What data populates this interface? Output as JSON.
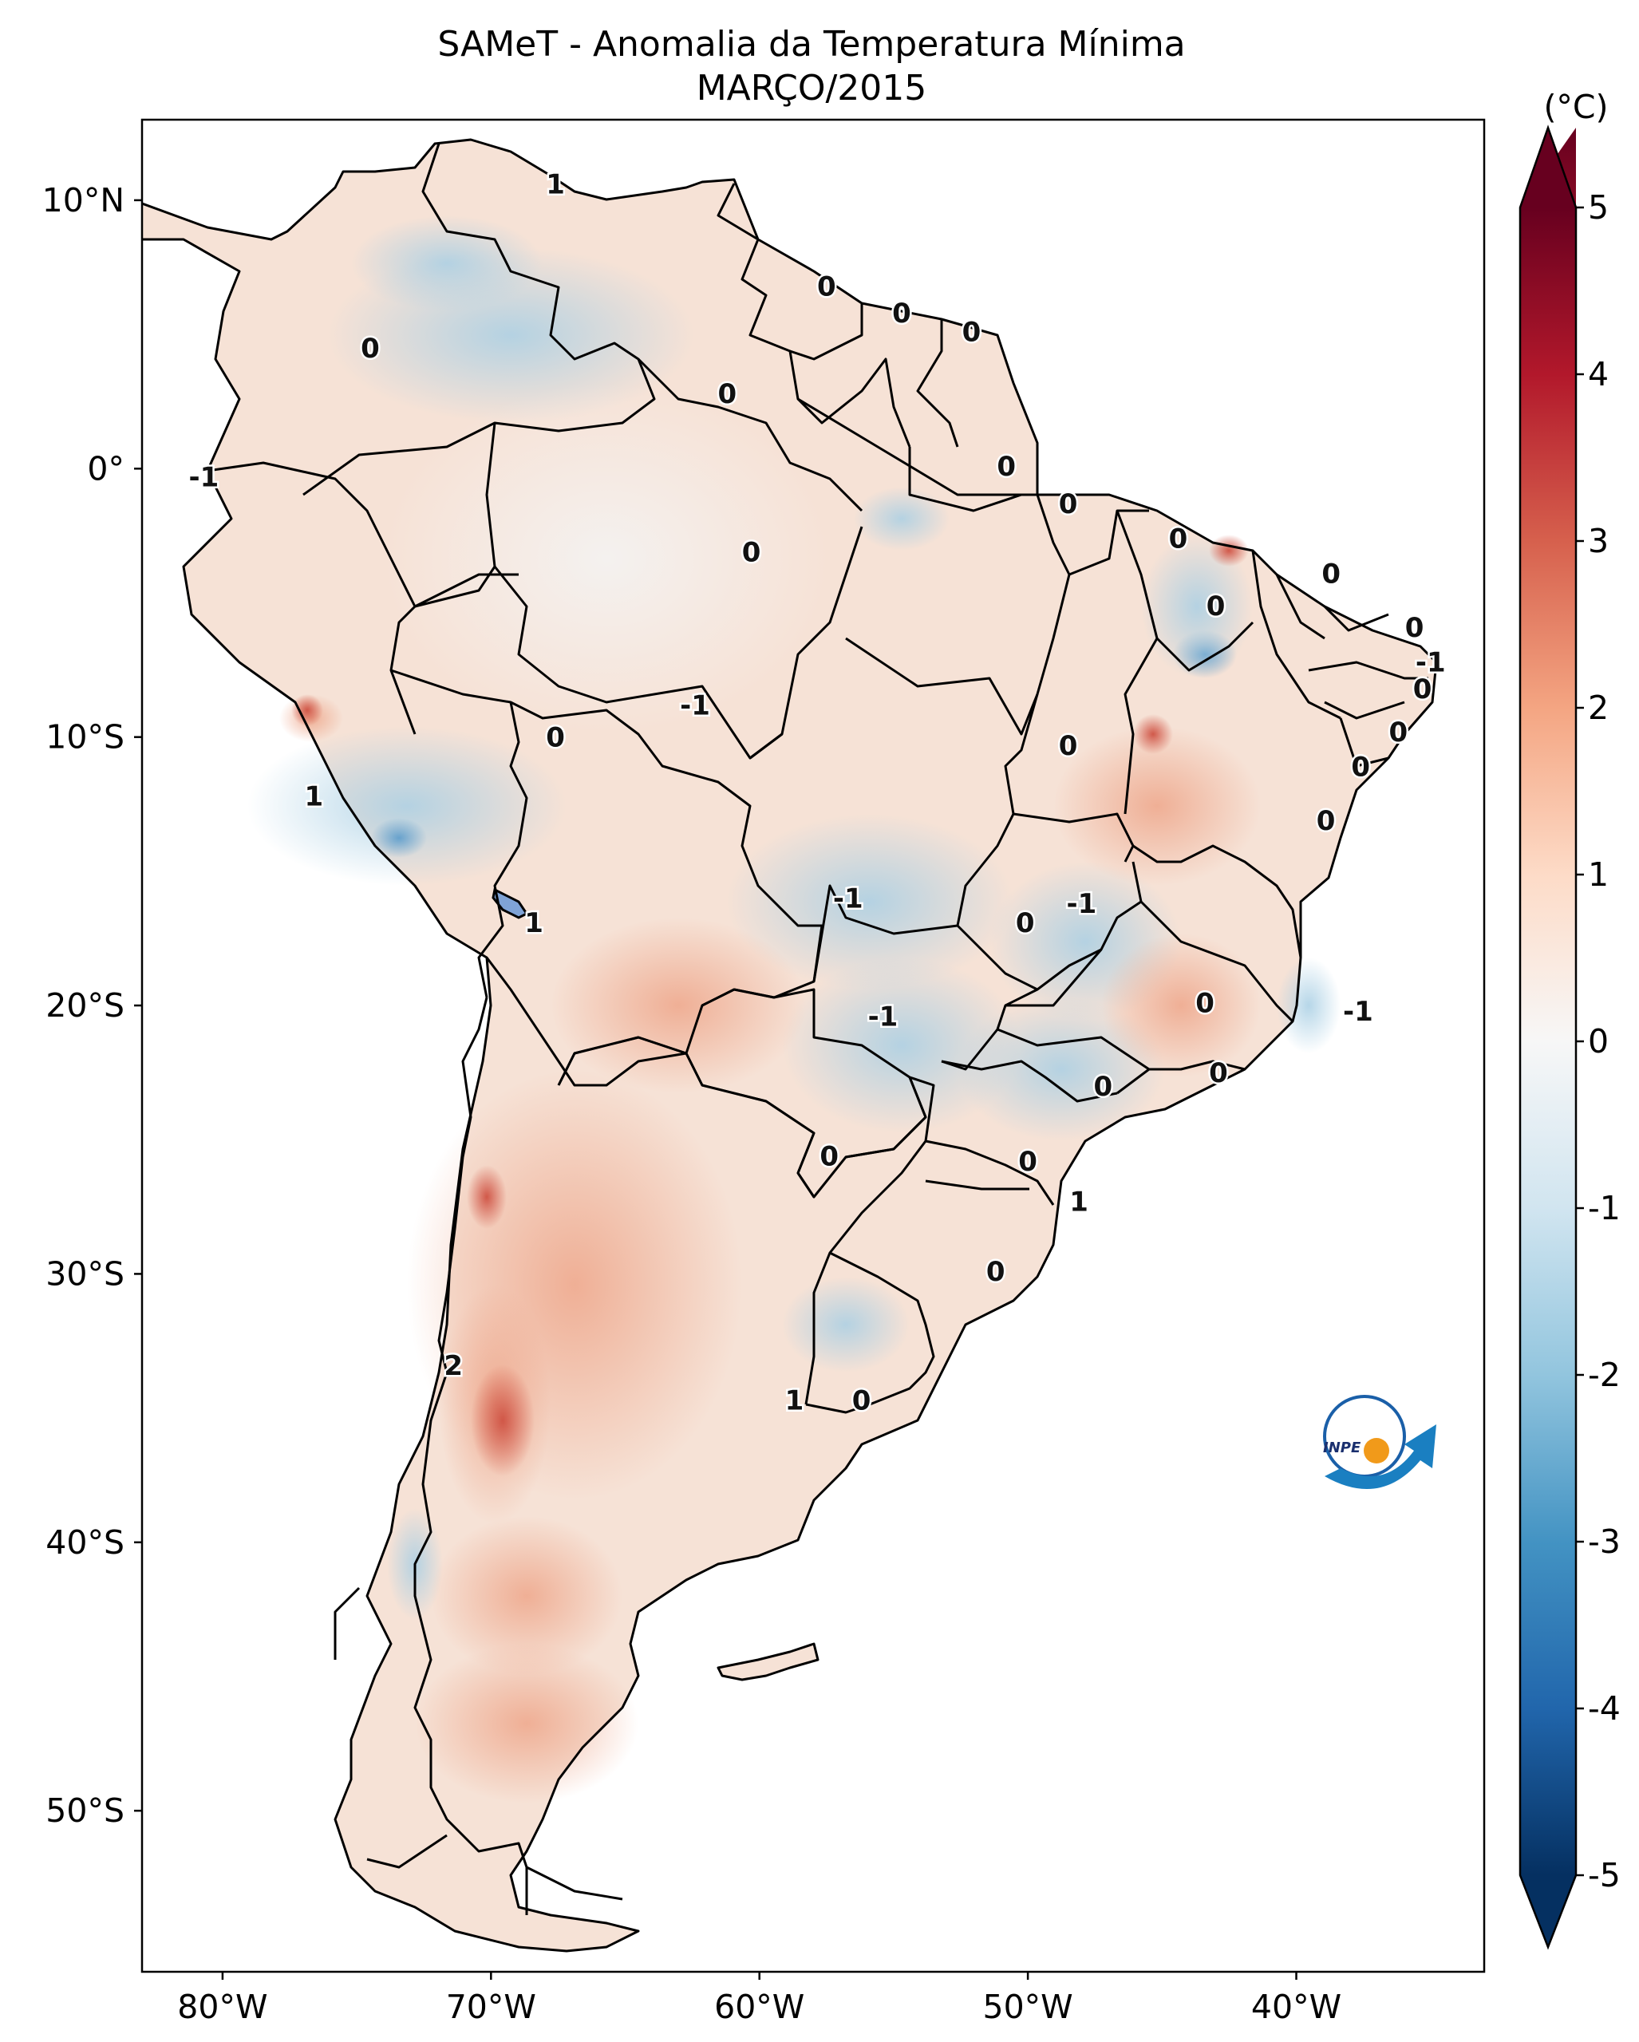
{
  "title": {
    "line1": "SAMeT - Anomalia da Temperatura Mínima",
    "line2": "MARÇO/2015"
  },
  "map": {
    "lon_range": [
      -83,
      -33
    ],
    "lat_range": [
      -56,
      13
    ],
    "lat_ticks": [
      {
        "lat": 10,
        "label": "10°N"
      },
      {
        "lat": 0,
        "label": "0°"
      },
      {
        "lat": -10,
        "label": "10°S"
      },
      {
        "lat": -20,
        "label": "20°S"
      },
      {
        "lat": -30,
        "label": "30°S"
      },
      {
        "lat": -40,
        "label": "40°S"
      },
      {
        "lat": -50,
        "label": "50°S"
      }
    ],
    "lon_ticks": [
      {
        "lon": -80,
        "label": "80°W"
      },
      {
        "lon": -70,
        "label": "70°W"
      },
      {
        "lon": -60,
        "label": "60°W"
      },
      {
        "lon": -50,
        "label": "50°W"
      },
      {
        "lon": -40,
        "label": "40°W"
      }
    ],
    "colorscale": {
      "neg": [
        "#053061",
        "#2166ac",
        "#4393c3",
        "#92c5de",
        "#d1e5f0",
        "#f7f7f7"
      ],
      "pos": [
        "#f7f7f7",
        "#fddbc7",
        "#f4a582",
        "#d6604d",
        "#b2182b",
        "#67001f"
      ]
    },
    "contour_labels": [
      {
        "lon": -67.6,
        "lat": 10.6,
        "text": "1"
      },
      {
        "lon": -74.5,
        "lat": 4.5,
        "text": "0"
      },
      {
        "lon": -61.2,
        "lat": 2.8,
        "text": "0"
      },
      {
        "lon": -80.7,
        "lat": -0.3,
        "text": "-1"
      },
      {
        "lon": -60.3,
        "lat": -3.1,
        "text": "0"
      },
      {
        "lon": -57.5,
        "lat": 6.8,
        "text": "0"
      },
      {
        "lon": -54.7,
        "lat": 5.8,
        "text": "0"
      },
      {
        "lon": -52.1,
        "lat": 5.1,
        "text": "0"
      },
      {
        "lon": -50.8,
        "lat": 0.1,
        "text": "0"
      },
      {
        "lon": -48.5,
        "lat": -1.3,
        "text": "0"
      },
      {
        "lon": -44.4,
        "lat": -2.6,
        "text": "0"
      },
      {
        "lon": -38.7,
        "lat": -3.9,
        "text": "0"
      },
      {
        "lon": -43.0,
        "lat": -5.1,
        "text": "0"
      },
      {
        "lon": -35.6,
        "lat": -5.9,
        "text": "0"
      },
      {
        "lon": -35.0,
        "lat": -7.2,
        "text": "-1"
      },
      {
        "lon": -35.3,
        "lat": -8.2,
        "text": "0"
      },
      {
        "lon": -36.2,
        "lat": -9.8,
        "text": "0"
      },
      {
        "lon": -37.6,
        "lat": -11.1,
        "text": "0"
      },
      {
        "lon": -38.9,
        "lat": -13.1,
        "text": "0"
      },
      {
        "lon": -62.4,
        "lat": -8.8,
        "text": "-1"
      },
      {
        "lon": -67.6,
        "lat": -10.0,
        "text": "0"
      },
      {
        "lon": -48.5,
        "lat": -10.3,
        "text": "0"
      },
      {
        "lon": -76.6,
        "lat": -12.2,
        "text": "1"
      },
      {
        "lon": -56.7,
        "lat": -16.0,
        "text": "-1"
      },
      {
        "lon": -68.4,
        "lat": -16.9,
        "text": "1"
      },
      {
        "lon": -48.0,
        "lat": -16.2,
        "text": "-1"
      },
      {
        "lon": -50.1,
        "lat": -16.9,
        "text": "0"
      },
      {
        "lon": -55.4,
        "lat": -20.4,
        "text": "-1"
      },
      {
        "lon": -43.4,
        "lat": -19.9,
        "text": "0"
      },
      {
        "lon": -37.7,
        "lat": -20.2,
        "text": "-1"
      },
      {
        "lon": -47.2,
        "lat": -23.0,
        "text": "0"
      },
      {
        "lon": -42.9,
        "lat": -22.5,
        "text": "0"
      },
      {
        "lon": -57.4,
        "lat": -25.6,
        "text": "0"
      },
      {
        "lon": -50.0,
        "lat": -25.8,
        "text": "0"
      },
      {
        "lon": -48.1,
        "lat": -27.3,
        "text": "1"
      },
      {
        "lon": -51.2,
        "lat": -29.9,
        "text": "0"
      },
      {
        "lon": -71.4,
        "lat": -33.4,
        "text": "2"
      },
      {
        "lon": -58.7,
        "lat": -34.7,
        "text": "1"
      },
      {
        "lon": -56.2,
        "lat": -34.7,
        "text": "0"
      }
    ],
    "logo_text": "INPE"
  },
  "colorbar": {
    "unit": "(°C)",
    "vmin": -5,
    "vmax": 5,
    "ticks": [
      "5",
      "4",
      "3",
      "2",
      "1",
      "0",
      "-1",
      "-2",
      "-3",
      "-4",
      "-5"
    ]
  }
}
